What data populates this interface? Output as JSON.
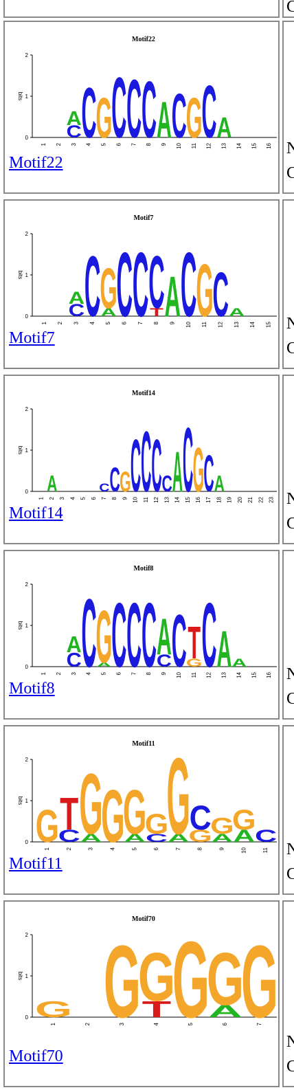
{
  "colors": {
    "A": "#22b522",
    "C": "#1a1adf",
    "G": "#f3a62a",
    "T": "#d81a1a",
    "link": "#0000ee",
    "border": "#888888"
  },
  "top": {
    "right_trunc": "C"
  },
  "motifs": [
    {
      "name": "Motif22",
      "title": "Motif22",
      "positions": 16,
      "y_labels": [
        "2",
        "1",
        "0"
      ],
      "y_axis": "bits",
      "right_trunc_1": "N",
      "right_trunc_2": "C",
      "columns": [
        [],
        [],
        [
          [
            "C",
            0.3
          ],
          [
            "A",
            0.35
          ]
        ],
        [
          [
            "C",
            1.25
          ]
        ],
        [
          [
            "G",
            1.0
          ]
        ],
        [
          [
            "C",
            1.5
          ]
        ],
        [
          [
            "C",
            1.45
          ]
        ],
        [
          [
            "C",
            1.4
          ]
        ],
        [
          [
            "A",
            0.9
          ]
        ],
        [
          [
            "C",
            1.1
          ]
        ],
        [
          [
            "G",
            1.0
          ]
        ],
        [
          [
            "C",
            1.3
          ]
        ],
        [
          [
            "A",
            0.5
          ]
        ],
        [],
        [],
        []
      ]
    },
    {
      "name": "Motif7",
      "title": "Motif7",
      "positions": 15,
      "y_labels": [
        "2",
        "1",
        "0"
      ],
      "y_axis": "bits",
      "right_trunc_1": "N",
      "right_trunc_2": "C",
      "columns": [
        [],
        [],
        [
          [
            "C",
            0.3
          ],
          [
            "A",
            0.3
          ]
        ],
        [
          [
            "C",
            1.5
          ]
        ],
        [
          [
            "A",
            0.2
          ],
          [
            "G",
            1.0
          ]
        ],
        [
          [
            "C",
            1.6
          ]
        ],
        [
          [
            "C",
            1.6
          ]
        ],
        [
          [
            "T",
            0.2
          ],
          [
            "C",
            1.3
          ]
        ],
        [
          [
            "A",
            1.0
          ]
        ],
        [
          [
            "C",
            1.6
          ]
        ],
        [
          [
            "G",
            1.3
          ]
        ],
        [
          [
            "C",
            1.1
          ]
        ],
        [
          [
            "A",
            0.2
          ]
        ],
        [],
        []
      ]
    },
    {
      "name": "Motif14",
      "title": "Motif14",
      "positions": 23,
      "y_labels": [
        "2",
        "1",
        "0"
      ],
      "y_axis": "bits",
      "right_trunc_1": "N",
      "right_trunc_2": "C",
      "columns": [
        [],
        [
          [
            "A",
            0.4
          ]
        ],
        [],
        [],
        [],
        [],
        [
          [
            "C",
            0.2
          ]
        ],
        [
          [
            "C",
            0.6
          ]
        ],
        [
          [
            "G",
            0.5
          ]
        ],
        [
          [
            "C",
            1.3
          ]
        ],
        [
          [
            "C",
            1.5
          ]
        ],
        [
          [
            "C",
            1.3
          ]
        ],
        [
          [
            "C",
            0.4
          ]
        ],
        [
          [
            "A",
            1.0
          ]
        ],
        [
          [
            "C",
            1.6
          ]
        ],
        [
          [
            "G",
            1.1
          ]
        ],
        [
          [
            "C",
            0.9
          ]
        ],
        [
          [
            "A",
            0.4
          ]
        ],
        [],
        [],
        [],
        [],
        []
      ]
    },
    {
      "name": "Motif8",
      "title": "Motif8",
      "positions": 16,
      "y_labels": [
        "2",
        "1",
        "0"
      ],
      "y_axis": "bits",
      "right_trunc_1": "N",
      "right_trunc_2": "C",
      "columns": [
        [],
        [],
        [
          [
            "C",
            0.35
          ],
          [
            "A",
            0.4
          ]
        ],
        [
          [
            "C",
            1.7
          ]
        ],
        [
          [
            "A",
            0.1
          ],
          [
            "G",
            1.3
          ]
        ],
        [
          [
            "C",
            1.6
          ]
        ],
        [
          [
            "C",
            1.6
          ]
        ],
        [
          [
            "C",
            1.6
          ]
        ],
        [
          [
            "C",
            0.3
          ],
          [
            "A",
            0.9
          ]
        ],
        [
          [
            "C",
            1.3
          ]
        ],
        [
          [
            "G",
            0.2
          ],
          [
            "T",
            0.8
          ]
        ],
        [
          [
            "C",
            1.6
          ]
        ],
        [
          [
            "A",
            0.9
          ]
        ],
        [
          [
            "A",
            0.2
          ]
        ],
        [],
        []
      ]
    },
    {
      "name": "Motif11",
      "title": "Motif11",
      "positions": 11,
      "y_labels": [
        "2",
        "1",
        "0"
      ],
      "y_axis": "bits",
      "right_trunc_1": "N",
      "right_trunc_2": "C",
      "columns": [
        [
          [
            "G",
            0.8
          ]
        ],
        [
          [
            "C",
            0.3
          ],
          [
            "T",
            0.8
          ]
        ],
        [
          [
            "A",
            0.2
          ],
          [
            "G",
            1.5
          ]
        ],
        [
          [
            "G",
            1.3
          ]
        ],
        [
          [
            "A",
            0.2
          ],
          [
            "G",
            1.1
          ]
        ],
        [
          [
            "C",
            0.2
          ],
          [
            "G",
            0.5
          ]
        ],
        [
          [
            "A",
            0.2
          ],
          [
            "G",
            1.9
          ]
        ],
        [
          [
            "G",
            0.3
          ],
          [
            "C",
            0.6
          ]
        ],
        [
          [
            "A",
            0.2
          ],
          [
            "G",
            0.4
          ]
        ],
        [
          [
            "A",
            0.3
          ],
          [
            "G",
            0.5
          ]
        ],
        [
          [
            "C",
            0.3
          ]
        ]
      ]
    },
    {
      "name": "Motif70",
      "title": "Motif70",
      "positions": 7,
      "y_labels": [
        "2",
        "1",
        "0"
      ],
      "y_axis": "bits",
      "right_trunc_1": "N",
      "right_trunc_2": "C",
      "columns": [
        [
          [
            "G",
            0.4
          ]
        ],
        [],
        [
          [
            "G",
            1.8
          ]
        ],
        [
          [
            "T",
            0.4
          ],
          [
            "G",
            1.2
          ]
        ],
        [
          [
            "G",
            1.9
          ]
        ],
        [
          [
            "A",
            0.3
          ],
          [
            "G",
            1.3
          ]
        ],
        [
          [
            "G",
            1.8
          ]
        ]
      ]
    }
  ]
}
